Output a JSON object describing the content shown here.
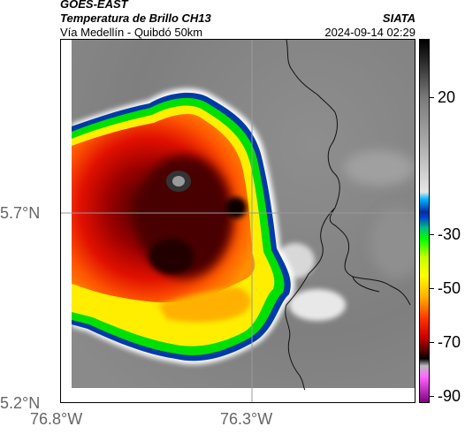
{
  "header": {
    "satellite": "GOES-EAST",
    "product": "Temperatura de Brillo CH13",
    "route": "Vía Medellín - Quibdó 50km",
    "agency": "SIATA",
    "timestamp": "2024-09-14 02:29"
  },
  "map": {
    "lat_labels": [
      "5.7°N",
      "5.2°N"
    ],
    "lon_labels": [
      "76.8°W",
      "76.3°W"
    ]
  },
  "colorbar": {
    "labels": [
      "20",
      "-30",
      "-50",
      "-70",
      "-90"
    ]
  }
}
